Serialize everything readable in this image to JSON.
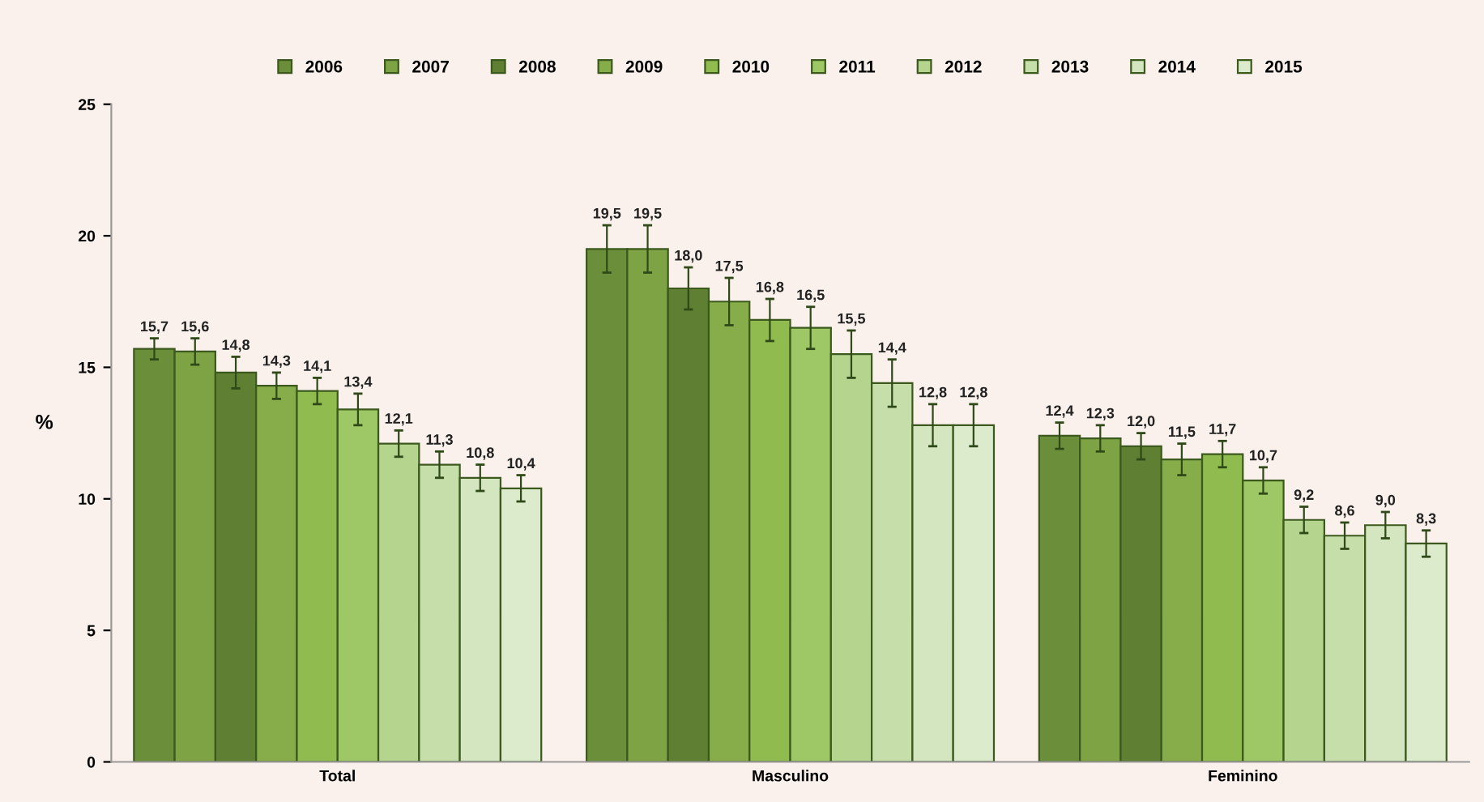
{
  "chart_data": {
    "type": "bar",
    "ylabel": "%",
    "categories": [
      "Total",
      "Masculino",
      "Feminino"
    ],
    "ylim": [
      0,
      25
    ],
    "yticks": [
      0,
      5,
      10,
      15,
      20,
      25
    ],
    "grid": false,
    "legend": "top",
    "series": [
      {
        "name": "2006",
        "color": "#6b8e3a",
        "values": [
          15.7,
          19.5,
          12.4
        ],
        "value_labels": [
          "15,7",
          "19,5",
          "12,4"
        ],
        "errors": [
          0.4,
          0.9,
          0.5
        ]
      },
      {
        "name": "2007",
        "color": "#7ea344",
        "values": [
          15.6,
          19.5,
          12.3
        ],
        "value_labels": [
          "15,6",
          "19,5",
          "12,3"
        ],
        "errors": [
          0.5,
          0.9,
          0.5
        ]
      },
      {
        "name": "2008",
        "color": "#5f7f32",
        "values": [
          14.8,
          18.0,
          12.0
        ],
        "value_labels": [
          "14,8",
          "18,0",
          "12,0"
        ],
        "errors": [
          0.6,
          0.8,
          0.5
        ]
      },
      {
        "name": "2009",
        "color": "#86ad4a",
        "values": [
          14.3,
          17.5,
          11.5
        ],
        "value_labels": [
          "14,3",
          "17,5",
          "11,5"
        ],
        "errors": [
          0.5,
          0.9,
          0.6
        ]
      },
      {
        "name": "2010",
        "color": "#8fbb4f",
        "values": [
          14.1,
          16.8,
          11.7
        ],
        "value_labels": [
          "14,1",
          "16,8",
          "11,7"
        ],
        "errors": [
          0.5,
          0.8,
          0.5
        ]
      },
      {
        "name": "2011",
        "color": "#9ec865",
        "values": [
          13.4,
          16.5,
          10.7
        ],
        "value_labels": [
          "13,4",
          "16,5",
          "10,7"
        ],
        "errors": [
          0.6,
          0.8,
          0.5
        ]
      },
      {
        "name": "2012",
        "color": "#b5d48e",
        "values": [
          12.1,
          15.5,
          9.2
        ],
        "value_labels": [
          "12,1",
          "15,5",
          "9,2"
        ],
        "errors": [
          0.5,
          0.9,
          0.5
        ]
      },
      {
        "name": "2013",
        "color": "#c5deaa",
        "values": [
          11.3,
          14.4,
          8.6
        ],
        "value_labels": [
          "11,3",
          "14,4",
          "8,6"
        ],
        "errors": [
          0.5,
          0.9,
          0.5
        ]
      },
      {
        "name": "2014",
        "color": "#d3e6bf",
        "values": [
          10.8,
          12.8,
          9.0
        ],
        "value_labels": [
          "10,8",
          "12,8",
          "9,0"
        ],
        "errors": [
          0.5,
          0.8,
          0.5
        ]
      },
      {
        "name": "2015",
        "color": "#dcebcc",
        "values": [
          10.4,
          12.8,
          8.3
        ],
        "value_labels": [
          "10,4",
          "12,8",
          "8,3"
        ],
        "errors": [
          0.5,
          0.8,
          0.5
        ]
      }
    ]
  }
}
